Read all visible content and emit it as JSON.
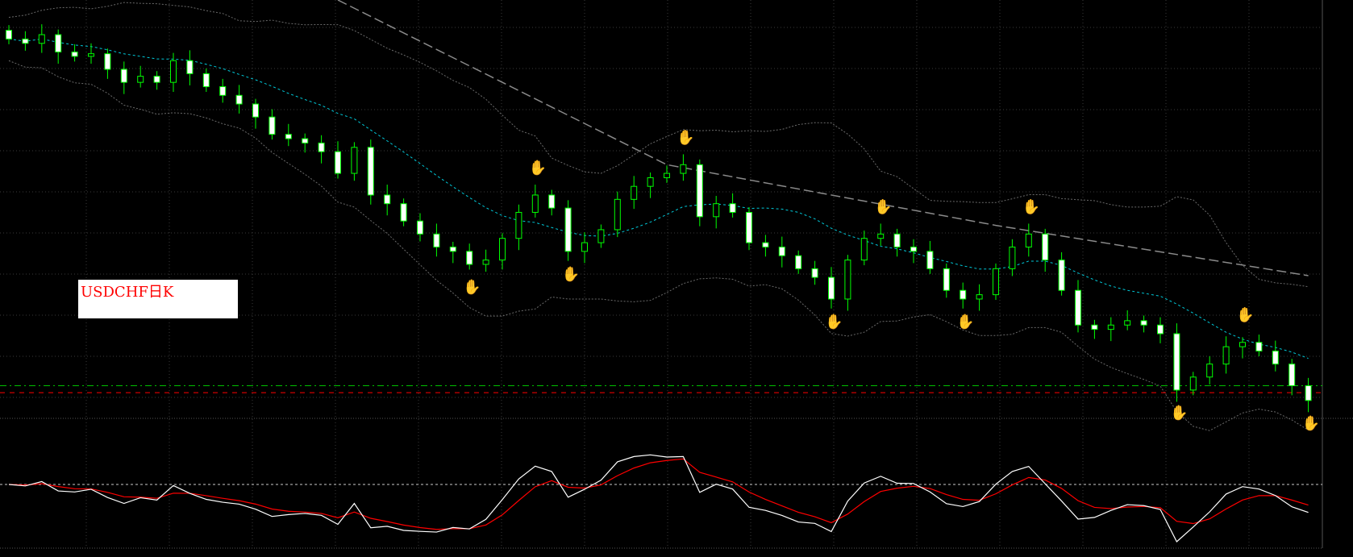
{
  "chart_label": "USDCHF日K",
  "colors": {
    "background": "#000000",
    "grid": "#3a3a3a",
    "bull_candle": "#00ff00",
    "bear_candle_body": "#ffffff",
    "mid_band": "#00c8d8",
    "outer_band": "#6a6a6a",
    "long_ma": "#8a8a8a",
    "fractal_up": "#ff0000",
    "fractal_down": "#1e90ff",
    "osc_main": "#ffffff",
    "osc_signal": "#ff0000",
    "level_green": "#00c000",
    "level_red": "#ff0000"
  },
  "chart_data": {
    "type": "candlestick",
    "ylim": [
      0.9044,
      1.0
    ],
    "grid": true,
    "closes": [
      0.991,
      0.99,
      0.992,
      0.988,
      0.987,
      0.9876,
      0.984,
      0.981,
      0.9824,
      0.981,
      0.986,
      0.983,
      0.98,
      0.978,
      0.976,
      0.973,
      0.969,
      0.968,
      0.967,
      0.965,
      0.96,
      0.966,
      0.955,
      0.953,
      0.949,
      0.946,
      0.943,
      0.942,
      0.939,
      0.94,
      0.945,
      0.951,
      0.955,
      0.952,
      0.942,
      0.944,
      0.947,
      0.954,
      0.957,
      0.959,
      0.96,
      0.962,
      0.95,
      0.953,
      0.951,
      0.944,
      0.943,
      0.941,
      0.938,
      0.936,
      0.931,
      0.94,
      0.945,
      0.946,
      0.943,
      0.942,
      0.938,
      0.933,
      0.931,
      0.932,
      0.938,
      0.943,
      0.946,
      0.94,
      0.933,
      0.925,
      0.924,
      0.925,
      0.926,
      0.925,
      0.923,
      0.91,
      0.913,
      0.916,
      0.92,
      0.921,
      0.919,
      0.916,
      0.911,
      0.9076
    ],
    "long_ma_anchors": [
      [
        20,
        1.0
      ],
      [
        40,
        0.962
      ],
      [
        60,
        0.948
      ],
      [
        79,
        0.9364
      ]
    ],
    "fractals_up": [
      32,
      41,
      53,
      62,
      75
    ],
    "fractals_down": [
      28,
      34,
      50,
      58,
      71,
      79
    ],
    "levels": [
      0.911,
      0.9094
    ],
    "oscillator": {
      "zero_level": 0
    }
  }
}
